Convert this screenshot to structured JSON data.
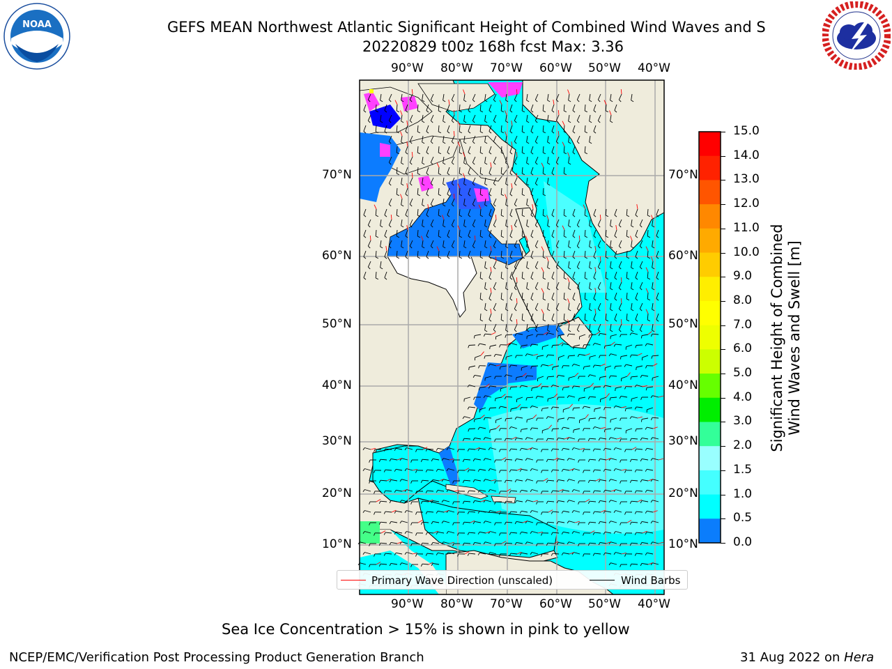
{
  "header": {
    "title": "GEFS MEAN Northwest Atlantic Significant Height of Combined Wind Waves and S",
    "subtitle": "20220829 t00z 168h fcst   Max: 3.36"
  },
  "logos": {
    "left": {
      "name": "NOAA",
      "text": "NOAA",
      "ring_text": "NATIONAL OCEANIC AND ATMOSPHERIC ADMINISTRATION · U.S. DEPARTMENT OF COMMERCE"
    },
    "right": {
      "name": "NATIONAL WEATHER SERVICE",
      "ring_text": "NATIONAL WEATHER SERVICE"
    }
  },
  "map": {
    "lon_labels": [
      "90°W",
      "80°W",
      "70°W",
      "60°W",
      "50°W",
      "40°W"
    ],
    "lat_labels": [
      "70°N",
      "60°N",
      "50°N",
      "40°N",
      "30°N",
      "20°N",
      "10°N"
    ],
    "land_color": "#efecdc",
    "water_color": "#00ffff",
    "shallow_color": "#0c7cff",
    "ice_color": "#ff40ff"
  },
  "legend": {
    "primary": "Primary Wave Direction (unscaled)",
    "barbs": "Wind Barbs"
  },
  "colorbar": {
    "label_line1": "Significant Height of Combined",
    "label_line2": "Wind Waves and Swell [m]",
    "ticks": [
      "15.0",
      "14.0",
      "13.0",
      "12.0",
      "11.0",
      "10.0",
      "9.0",
      "8.0",
      "7.0",
      "6.0",
      "5.0",
      "4.0",
      "3.0",
      "2.0",
      "1.5",
      "1.0",
      "0.5",
      "0.0"
    ],
    "colors": [
      "#ff0000",
      "#ff2200",
      "#ff5500",
      "#ff8800",
      "#ffaa00",
      "#ffcc00",
      "#ffee00",
      "#ffff00",
      "#eeff00",
      "#ccff00",
      "#66ff00",
      "#00ee00",
      "#33ff99",
      "#99ffff",
      "#44ffff",
      "#00ffff",
      "#0b7dfc",
      "#0000ff"
    ]
  },
  "note": "Sea Ice Concentration > 15% is shown in pink to yellow",
  "footer": {
    "left": "NCEP/EMC/Verification Post Processing Product Generation Branch",
    "right_date": "31 Aug 2022 on ",
    "right_machine": "Hera"
  }
}
